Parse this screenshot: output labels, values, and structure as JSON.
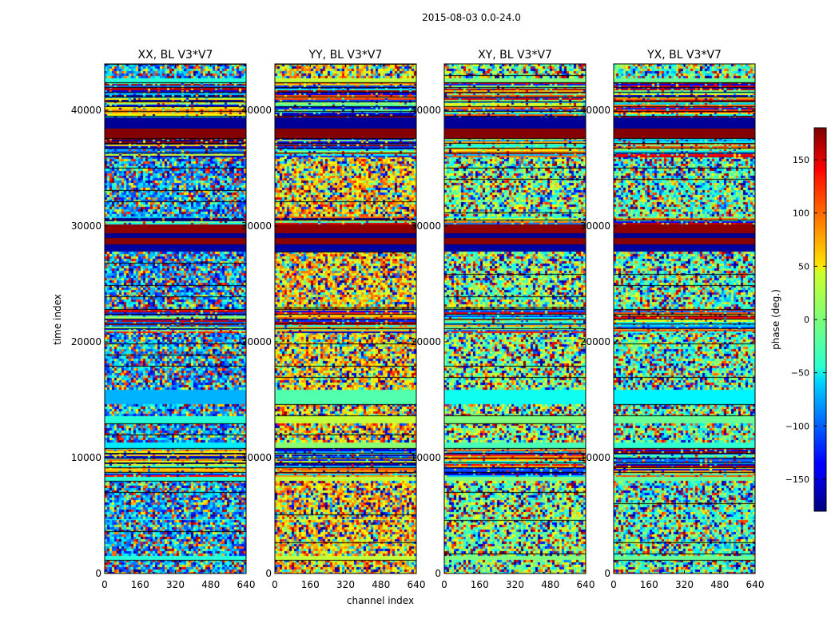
{
  "chart_data": {
    "type": "heatmap",
    "suptitle": "2015-08-03 0.0-24.0",
    "shared_xlabel": "channel index",
    "ylabel": "time index",
    "xlim": [
      0,
      640
    ],
    "ylim": [
      0,
      44000
    ],
    "x_ticks": [
      0,
      160,
      320,
      480,
      640
    ],
    "y_ticks": [
      0,
      10000,
      20000,
      30000,
      40000
    ],
    "y_tick_labels_first_panel": [
      "0",
      "10000",
      "20000",
      "30000",
      "40000"
    ],
    "y_tick_labels_other_panels": [
      "0",
      "10000",
      "20000",
      "30000",
      "40000"
    ],
    "panels": [
      {
        "title": "XX, BL V3*V7",
        "bias": -80
      },
      {
        "title": "YY, BL V3*V7",
        "bias": 60
      },
      {
        "title": "XY, BL V3*V7",
        "bias": 0
      },
      {
        "title": "YX, BL V3*V7",
        "bias": -20
      }
    ],
    "colorbar": {
      "label": "phase (deg.)",
      "range": [
        -180,
        180
      ],
      "ticks": [
        -150,
        -100,
        -50,
        0,
        50,
        100,
        150
      ],
      "tick_labels": [
        "−150",
        "−100",
        "−50",
        "0",
        "50",
        "100",
        "150"
      ],
      "colormap": "jet"
    },
    "bands": [
      {
        "start": 0,
        "end": 1200,
        "kind": "noise"
      },
      {
        "start": 1200,
        "end": 1500,
        "kind": "flat",
        "phase": 0
      },
      {
        "start": 1500,
        "end": 4600,
        "kind": "noise"
      },
      {
        "start": 4600,
        "end": 4800,
        "kind": "flat",
        "phase": 0
      },
      {
        "start": 4800,
        "end": 8000,
        "kind": "noise"
      },
      {
        "start": 8000,
        "end": 8400,
        "kind": "flat",
        "phase": 0
      },
      {
        "start": 8400,
        "end": 10800,
        "kind": "striped"
      },
      {
        "start": 10800,
        "end": 11400,
        "kind": "flat",
        "phase": -20
      },
      {
        "start": 11400,
        "end": 13000,
        "kind": "noise"
      },
      {
        "start": 13000,
        "end": 13600,
        "kind": "flat",
        "phase": 0
      },
      {
        "start": 13600,
        "end": 14600,
        "kind": "noise"
      },
      {
        "start": 14600,
        "end": 16000,
        "kind": "flat",
        "phase": -40
      },
      {
        "start": 16000,
        "end": 20800,
        "kind": "noise"
      },
      {
        "start": 20800,
        "end": 22800,
        "kind": "striped"
      },
      {
        "start": 22800,
        "end": 27800,
        "kind": "noise"
      },
      {
        "start": 27800,
        "end": 28400,
        "kind": "flat",
        "phase": -170
      },
      {
        "start": 28400,
        "end": 29000,
        "kind": "flat",
        "phase": 178
      },
      {
        "start": 29000,
        "end": 29400,
        "kind": "flat",
        "phase": -175
      },
      {
        "start": 29400,
        "end": 30200,
        "kind": "flat",
        "phase": 175
      },
      {
        "start": 30200,
        "end": 31000,
        "kind": "striped"
      },
      {
        "start": 31000,
        "end": 36000,
        "kind": "noise"
      },
      {
        "start": 36000,
        "end": 37600,
        "kind": "striped"
      },
      {
        "start": 37600,
        "end": 38400,
        "kind": "flat",
        "phase": 178
      },
      {
        "start": 38400,
        "end": 39400,
        "kind": "flat",
        "phase": -172
      },
      {
        "start": 39400,
        "end": 42400,
        "kind": "striped"
      },
      {
        "start": 42400,
        "end": 42800,
        "kind": "flat",
        "phase": 0
      },
      {
        "start": 42800,
        "end": 44000,
        "kind": "noise"
      }
    ]
  }
}
